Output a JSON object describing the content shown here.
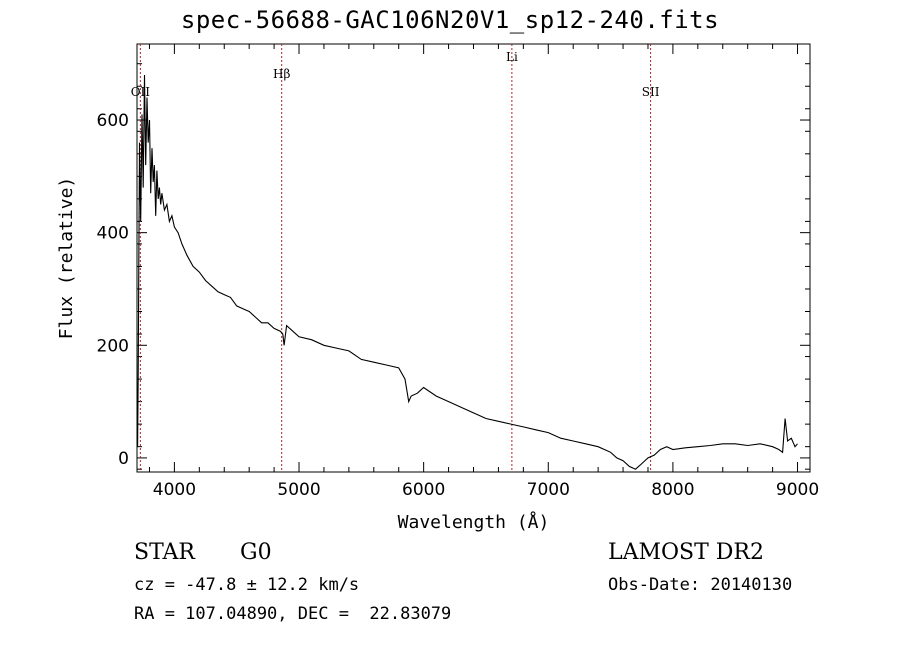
{
  "chart_data": {
    "type": "line",
    "title": "spec-56688-GAC106N20V1_sp12-240.fits",
    "xlabel": "Wavelength (Å)",
    "ylabel": "Flux (relative)",
    "xlim": [
      3700,
      9100
    ],
    "ylim": [
      -25,
      735
    ],
    "xticks": [
      4000,
      5000,
      6000,
      7000,
      8000,
      9000
    ],
    "yticks": [
      0,
      200,
      400,
      600
    ],
    "grid": false,
    "series": [
      {
        "x": [
          3705,
          3710,
          3720,
          3730,
          3740,
          3750,
          3760,
          3770,
          3780,
          3790,
          3800,
          3810,
          3820,
          3830,
          3840,
          3850,
          3860,
          3870,
          3880,
          3890,
          3900,
          3920,
          3940,
          3960,
          3980,
          4000,
          4030,
          4060,
          4100,
          4150,
          4200,
          4250,
          4300,
          4350,
          4400,
          4450,
          4500,
          4550,
          4600,
          4650,
          4700,
          4750,
          4800,
          4850,
          4870,
          4880,
          4900,
          4950,
          5000,
          5100,
          5200,
          5300,
          5400,
          5500,
          5600,
          5700,
          5800,
          5850,
          5880,
          5900,
          5950,
          6000,
          6100,
          6200,
          6300,
          6400,
          6500,
          6600,
          6700,
          6800,
          6900,
          7000,
          7100,
          7200,
          7300,
          7400,
          7500,
          7550,
          7600,
          7650,
          7700,
          7750,
          7800,
          7850,
          7900,
          7950,
          8000,
          8100,
          8200,
          8300,
          8400,
          8500,
          8600,
          8700,
          8800,
          8850,
          8880,
          8900,
          8920,
          8950,
          8980,
          9000
        ],
        "y": [
          20,
          150,
          560,
          420,
          610,
          480,
          680,
          520,
          640,
          560,
          600,
          470,
          550,
          490,
          520,
          430,
          510,
          460,
          480,
          450,
          470,
          440,
          450,
          420,
          430,
          410,
          400,
          380,
          360,
          340,
          330,
          315,
          305,
          295,
          290,
          285,
          270,
          265,
          260,
          250,
          240,
          240,
          230,
          225,
          220,
          200,
          235,
          225,
          215,
          210,
          200,
          195,
          190,
          175,
          170,
          165,
          160,
          140,
          100,
          110,
          115,
          125,
          110,
          100,
          90,
          80,
          70,
          65,
          60,
          55,
          50,
          45,
          35,
          30,
          25,
          20,
          10,
          0,
          -5,
          -15,
          -20,
          -10,
          0,
          5,
          15,
          20,
          15,
          18,
          20,
          22,
          25,
          25,
          22,
          25,
          20,
          15,
          10,
          70,
          30,
          35,
          20,
          25
        ]
      }
    ],
    "markers": [
      {
        "label": "OII",
        "x": 3727
      },
      {
        "label": "Hβ",
        "x": 4861
      },
      {
        "label": "Li",
        "x": 6708
      },
      {
        "label": "SII",
        "x": 7821
      }
    ]
  },
  "info": {
    "objtype": "STAR",
    "subclass": "G0",
    "release": "LAMOST DR2",
    "cz": "cz = -47.8 ± 12.2 km/s",
    "obsdate": "Obs-Date: 20140130",
    "radec": "RA = 107.04890, DEC =  22.83079"
  },
  "colors": {
    "spectrum": "#000000",
    "marker": "#b22222",
    "axis": "#000000"
  }
}
